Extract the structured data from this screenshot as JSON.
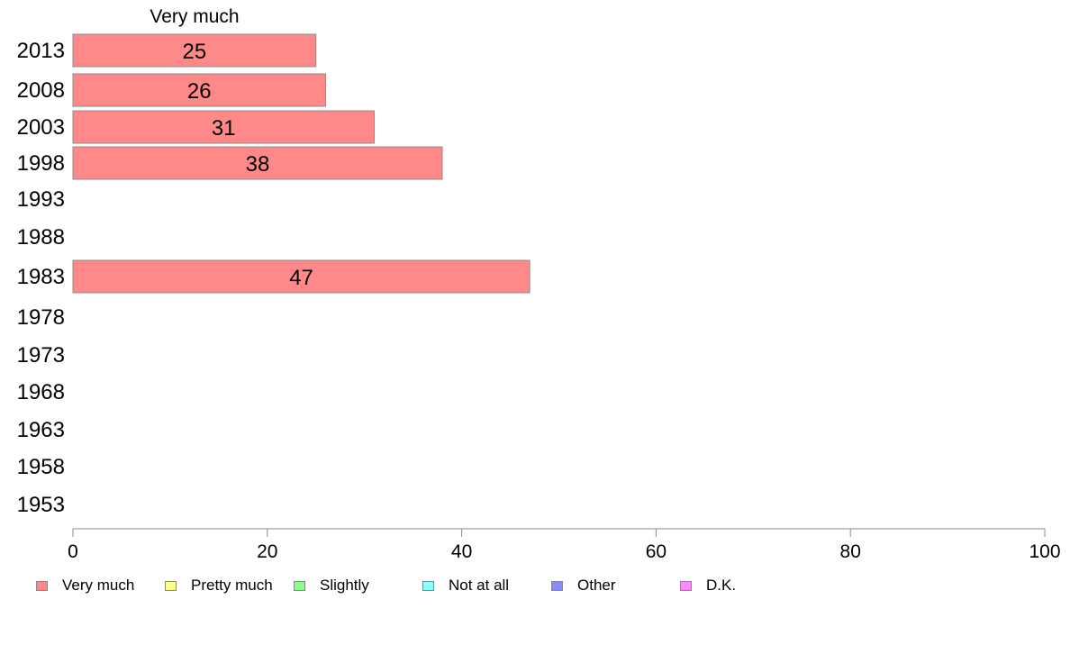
{
  "chart_data": {
    "type": "bar",
    "orientation": "horizontal",
    "stacked": true,
    "categories": [
      "2013",
      "2008",
      "2003",
      "1998",
      "1993",
      "1988",
      "1983",
      "1978",
      "1973",
      "1968",
      "1963",
      "1958",
      "1953"
    ],
    "series": [
      {
        "name": "Very much",
        "color": "#ff8888",
        "values": [
          25,
          26,
          31,
          38,
          null,
          null,
          47,
          null,
          null,
          null,
          null,
          null,
          null
        ]
      },
      {
        "name": "Pretty much",
        "color": "#ffff88",
        "values": [
          null,
          null,
          null,
          null,
          null,
          null,
          null,
          null,
          null,
          null,
          null,
          null,
          null
        ]
      },
      {
        "name": "Slightly",
        "color": "#88ff88",
        "values": [
          null,
          null,
          null,
          null,
          null,
          null,
          null,
          null,
          null,
          null,
          null,
          null,
          null
        ]
      },
      {
        "name": "Not at all",
        "color": "#88ffff",
        "values": [
          null,
          null,
          null,
          null,
          null,
          null,
          null,
          null,
          null,
          null,
          null,
          null,
          null
        ]
      },
      {
        "name": "Other",
        "color": "#8888ff",
        "values": [
          null,
          null,
          null,
          null,
          null,
          null,
          null,
          null,
          null,
          null,
          null,
          null,
          null
        ]
      },
      {
        "name": "D.K.",
        "color": "#ff88ff",
        "values": [
          null,
          null,
          null,
          null,
          null,
          null,
          null,
          null,
          null,
          null,
          null,
          null,
          null
        ]
      }
    ],
    "series_header": "Very much",
    "xlim": [
      0,
      100
    ],
    "xticks": [
      0,
      20,
      40,
      60,
      80,
      100
    ],
    "title": "",
    "xlabel": "",
    "ylabel": "",
    "grid": false,
    "legend_position": "bottom"
  }
}
